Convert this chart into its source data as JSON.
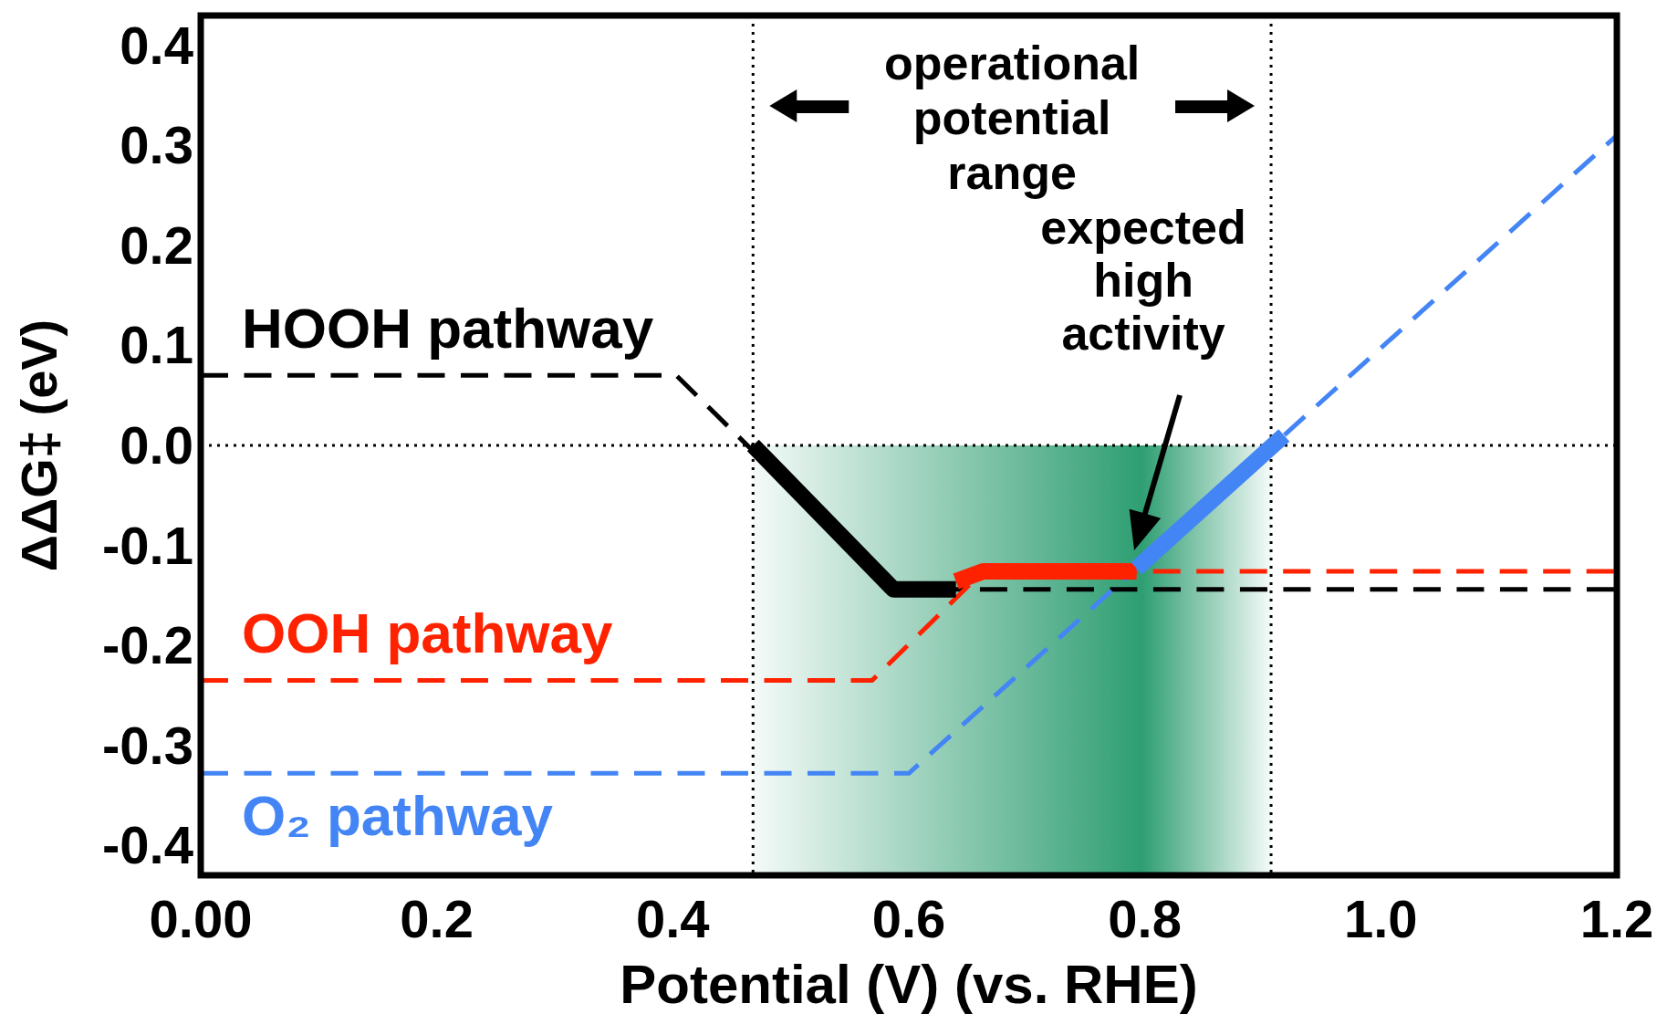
{
  "chart_data": {
    "type": "line",
    "xlabel": "Potential (V) (vs. RHE)",
    "ylabel": "ΔΔG‡ (eV)",
    "xlim": [
      0,
      1.2
    ],
    "ylim": [
      -0.43,
      0.43
    ],
    "xticks": [
      {
        "value": 0,
        "label": "0.00"
      },
      0.2,
      0.4,
      0.6,
      0.8,
      {
        "value": 1,
        "label": "1.0"
      },
      1.2
    ],
    "yticks": [
      -0.4,
      -0.3,
      -0.2,
      -0.1,
      {
        "value": 0,
        "label": "0.0"
      },
      0.1,
      0.2,
      0.3,
      0.4
    ],
    "grid": false,
    "series": [
      {
        "name": "HOOH pathway",
        "color": "#000000",
        "line_style": "dashed",
        "x": [
          0,
          0.403,
          0.587,
          1.2
        ],
        "values": [
          0.07,
          0.07,
          -0.144,
          -0.144
        ]
      },
      {
        "name": "OOH pathway",
        "color": "#ff2200",
        "line_style": "dashed",
        "x": [
          0,
          0.569,
          0.663,
          1.2
        ],
        "values": [
          -0.235,
          -0.235,
          -0.126,
          -0.126
        ]
      },
      {
        "name": "O₂ pathway",
        "color": "#4485f5",
        "line_style": "dashed",
        "x": [
          0,
          0.6,
          1.2
        ],
        "values": [
          -0.328,
          -0.328,
          0.31
        ]
      },
      {
        "color": "#000000",
        "line_style": "solid",
        "x": [
          0.468,
          0.587,
          0.64
        ],
        "values": [
          0,
          -0.144,
          -0.144
        ]
      },
      {
        "color": "#ff2200",
        "line_style": "solid",
        "x": [
          0.64,
          0.663,
          0.793
        ],
        "values": [
          -0.136,
          -0.126,
          -0.126
        ]
      },
      {
        "color": "#4485f5",
        "line_style": "solid",
        "x": [
          0.793,
          0.918
        ],
        "values": [
          -0.123,
          0.01
        ]
      }
    ],
    "ref_lines": [
      {
        "axis": "x",
        "value": 0.468,
        "line_style": "dotted",
        "color": "#000000"
      },
      {
        "axis": "x",
        "value": 0.907,
        "line_style": "dotted",
        "color": "#000000"
      },
      {
        "axis": "y",
        "value": 0,
        "line_style": "dotted",
        "color": "#000000"
      }
    ],
    "bands": [
      {
        "axis": "x",
        "from": 0.468,
        "to": 0.907,
        "color": "#2e9e72"
      }
    ],
    "annotations": [
      "operational potential range",
      "expected high activity"
    ]
  }
}
